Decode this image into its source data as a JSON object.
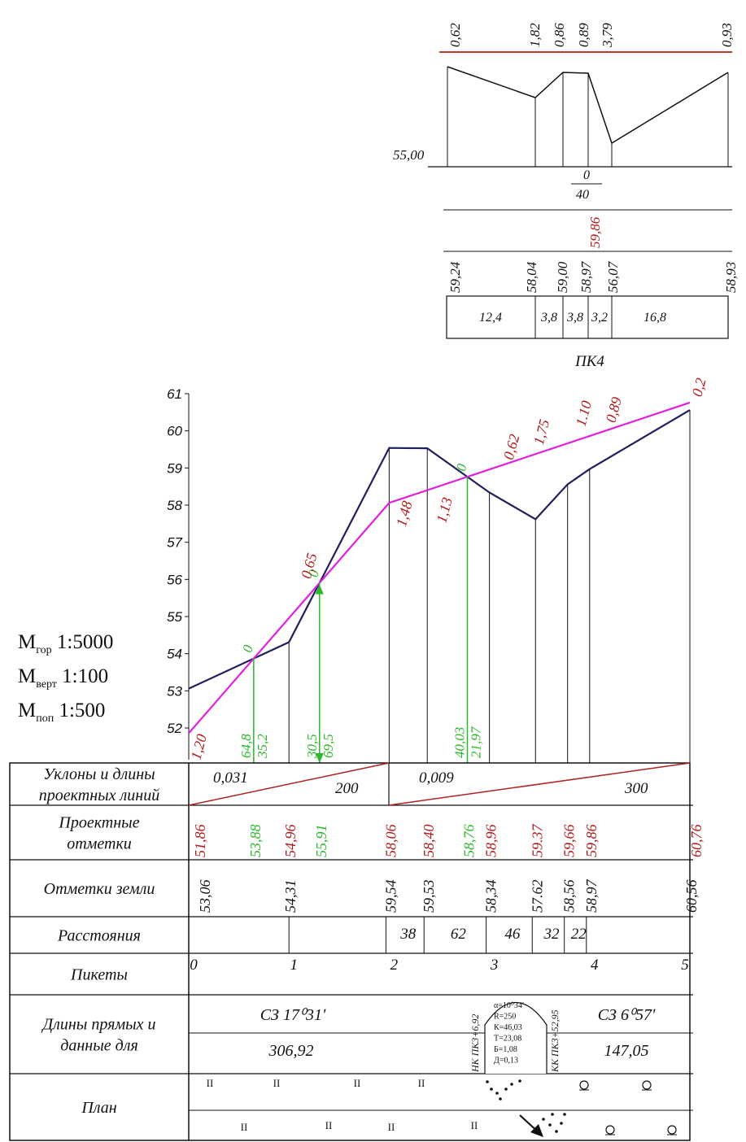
{
  "cross_section": {
    "top_values": [
      "0,62",
      "1,82",
      "0,86",
      "0,89",
      "3,79",
      "0,93"
    ],
    "datum": "55,00",
    "fraction_top": "0",
    "fraction_bottom": "40",
    "design_mark": "59,86",
    "ground_marks": [
      "59,24",
      "58,04",
      "59,00",
      "58,97",
      "56,07",
      "58,93"
    ],
    "distances": [
      "12,4",
      "3,8",
      "3,8",
      "3,2",
      "16,8"
    ],
    "caption": "ПК4"
  },
  "scales": {
    "hor_main": "М",
    "hor_sub": "гор",
    "hor_val": "1:5000",
    "vert_main": "М",
    "vert_sub": "верт",
    "vert_val": "1:100",
    "cross_main": "М",
    "cross_sub": "поп",
    "cross_val": "1:500"
  },
  "chart_data": {
    "type": "line",
    "ylim": [
      52,
      61
    ],
    "y_ticks": [
      "52",
      "53",
      "54",
      "55",
      "56",
      "57",
      "58",
      "59",
      "60",
      "61"
    ],
    "x_stations": [
      0,
      1,
      2,
      3,
      4,
      5
    ],
    "series": [
      {
        "key": "ground",
        "color": "#1f1f5c",
        "x": [
          0,
          1.0,
          2.0,
          2.38,
          3.0,
          3.46,
          3.78,
          4.0,
          5.0
        ],
        "y": [
          53.06,
          54.31,
          59.54,
          59.53,
          58.34,
          57.62,
          58.56,
          58.97,
          60.56
        ]
      },
      {
        "key": "design",
        "color": "#e020e0",
        "x": [
          0,
          2.0,
          5.0
        ],
        "y": [
          51.86,
          58.06,
          60.76
        ]
      }
    ],
    "work_marks_red": [
      {
        "x": 0.0,
        "y": 52.0,
        "text": "1,20"
      },
      {
        "x": 1.1,
        "y": 56.0,
        "text": "0,65"
      },
      {
        "x": 2.05,
        "y": 57.4,
        "text": "1,48"
      },
      {
        "x": 2.45,
        "y": 57.5,
        "text": "1,13"
      },
      {
        "x": 3.12,
        "y": 59.2,
        "text": "0,62"
      },
      {
        "x": 3.42,
        "y": 59.6,
        "text": "1,75"
      },
      {
        "x": 3.84,
        "y": 60.1,
        "text": "1.10"
      },
      {
        "x": 4.14,
        "y": 60.2,
        "text": "0,89"
      },
      {
        "x": 5.0,
        "y": 60.9,
        "text": "0,2"
      }
    ],
    "zero_points": [
      {
        "x": 0.648,
        "y": 53.88,
        "left": "64,8",
        "right": "35,2",
        "zero": "0"
      },
      {
        "x": 1.305,
        "y": 55.91,
        "left": "30,5",
        "right": "69,5",
        "zero": "0"
      },
      {
        "x": 2.78,
        "y": 58.76,
        "left": "40,03",
        "right": "21,97",
        "zero": "0"
      }
    ]
  },
  "table": {
    "row_labels": [
      [
        "Уклоны и длины",
        "проектных линий"
      ],
      [
        "Проектные",
        "отметки"
      ],
      [
        "Отметки земли"
      ],
      [
        "Расстояния"
      ],
      [
        "Пикеты"
      ],
      [
        "Длины прямых и",
        "данные для"
      ],
      [
        "План"
      ]
    ],
    "slopes": [
      {
        "slope": "0,031",
        "length": "200"
      },
      {
        "slope": "0,009",
        "length": "300"
      }
    ],
    "design_marks": [
      {
        "x": 0.0,
        "text": "51,86",
        "color": "#b01818"
      },
      {
        "x": 0.648,
        "text": "53,88",
        "color": "#2ab82a"
      },
      {
        "x": 1.0,
        "text": "54,96",
        "color": "#b01818"
      },
      {
        "x": 1.305,
        "text": "55,91",
        "color": "#2ab82a"
      },
      {
        "x": 2.0,
        "text": "58,06",
        "color": "#b01818"
      },
      {
        "x": 2.38,
        "text": "58,40",
        "color": "#b01818"
      },
      {
        "x": 2.78,
        "text": "58,76",
        "color": "#2ab82a"
      },
      {
        "x": 3.0,
        "text": "58,96",
        "color": "#b01818"
      },
      {
        "x": 3.46,
        "text": "59.37",
        "color": "#b01818"
      },
      {
        "x": 3.78,
        "text": "59,66",
        "color": "#b01818"
      },
      {
        "x": 4.0,
        "text": "59,86",
        "color": "#b01818"
      },
      {
        "x": 5.0,
        "text": "60,76",
        "color": "#b01818"
      }
    ],
    "ground_marks": [
      {
        "x": 0.0,
        "text": "53,06"
      },
      {
        "x": 1.0,
        "text": "54,31"
      },
      {
        "x": 2.0,
        "text": "59,54"
      },
      {
        "x": 2.38,
        "text": "59,53"
      },
      {
        "x": 3.0,
        "text": "58,34"
      },
      {
        "x": 3.46,
        "text": "57.62"
      },
      {
        "x": 3.78,
        "text": "58,56"
      },
      {
        "x": 4.0,
        "text": "58,97"
      },
      {
        "x": 5.0,
        "text": "60,56"
      }
    ],
    "distances": [
      "38",
      "62",
      "46",
      "32",
      "22"
    ],
    "pickets": [
      "0",
      "1",
      "2",
      "3",
      "4",
      "5"
    ],
    "direction_1": "СЗ 17⁰31ʹ",
    "length_1": "306,92",
    "direction_2": "СЗ 6⁰57ʹ",
    "length_2": "147,05",
    "curve_start": "НК ПК3+6,92",
    "curve_end": "КК ПК3+52,95",
    "curve_data": [
      "α=10⁰34ʹ",
      "R=250",
      "К=46,03",
      "Т=23,08",
      "Б=1,08",
      "Д=0,13"
    ]
  }
}
